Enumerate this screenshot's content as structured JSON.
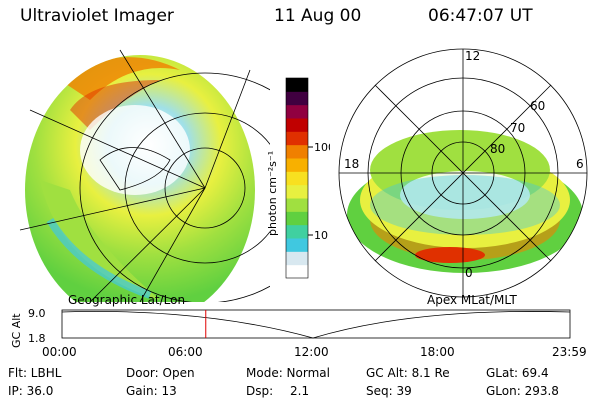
{
  "header": {
    "instrument": "Ultraviolet Imager",
    "date": "11 Aug 00",
    "time": "06:47:07 UT"
  },
  "colorbar": {
    "label": "photon cm⁻²s⁻¹",
    "ticks": [
      "100",
      "10"
    ],
    "colors": [
      "#ffffff",
      "#d8e8f0",
      "#40c8e0",
      "#40d0a0",
      "#60d040",
      "#a0e040",
      "#e8f040",
      "#f8e020",
      "#f8b000",
      "#f08000",
      "#e03000",
      "#c00000",
      "#900040",
      "#400040",
      "#000000"
    ]
  },
  "left_panel": {
    "label": "Geographic Lat/Lon"
  },
  "right_panel": {
    "label": "Apex MLat/MLT",
    "mlt_labels": [
      "12",
      "18",
      "6",
      "0"
    ],
    "lat_labels": [
      "60",
      "70",
      "80"
    ]
  },
  "timeline": {
    "axis_label": "GC Alt",
    "y_ticks": [
      "9.0",
      "1.8"
    ],
    "x_ticks": [
      "00:00",
      "06:00",
      "12:00",
      "18:00",
      "23:59"
    ],
    "current_time_fraction": 0.283
  },
  "info": {
    "flt": "Flt: LBHL",
    "door": "Door: Open",
    "mode": "Mode: Normal",
    "gc_alt": "GC Alt: 8.1 Re",
    "glat": "GLat:  69.4",
    "ip": "IP: 36.0",
    "gain": "Gain: 13",
    "dsp_label": "Dsp:",
    "dsp_value": "2.1",
    "seq": "Seq: 39",
    "glon": "GLon: 293.8"
  }
}
